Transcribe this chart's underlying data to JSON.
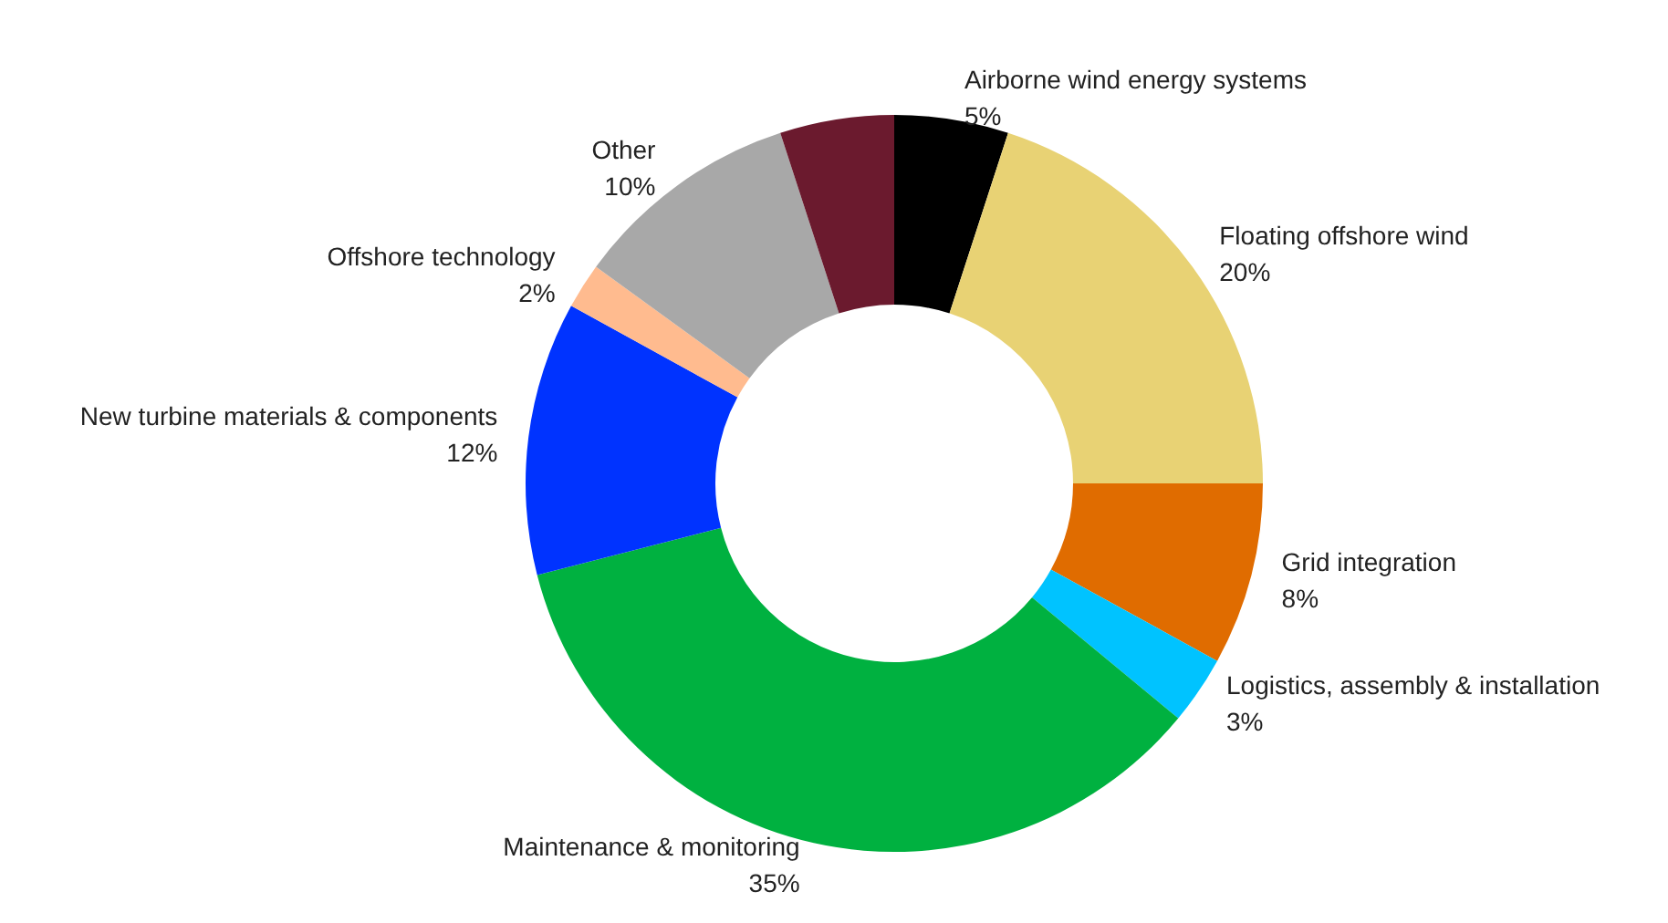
{
  "chart_data": {
    "type": "donut",
    "categories": [
      "Airborne wind energy systems",
      "Floating offshore wind",
      "Grid integration",
      "Logistics, assembly & installation",
      "Maintenance & monitoring",
      "New turbine materials & components",
      "Offshore technology",
      "Other",
      null
    ],
    "values": [
      5,
      20,
      8,
      3,
      35,
      12,
      2,
      10,
      5
    ],
    "value_labels": [
      "5%",
      "20%",
      "8%",
      "3%",
      "35%",
      "12%",
      "2%",
      "10%",
      null
    ],
    "colors": [
      "#000000",
      "#e8d274",
      "#e06c00",
      "#00c3ff",
      "#00b140",
      "#0033ff",
      "#ffbb8f",
      "#a8a8a8",
      "#6b1a2e"
    ],
    "legend": false
  }
}
